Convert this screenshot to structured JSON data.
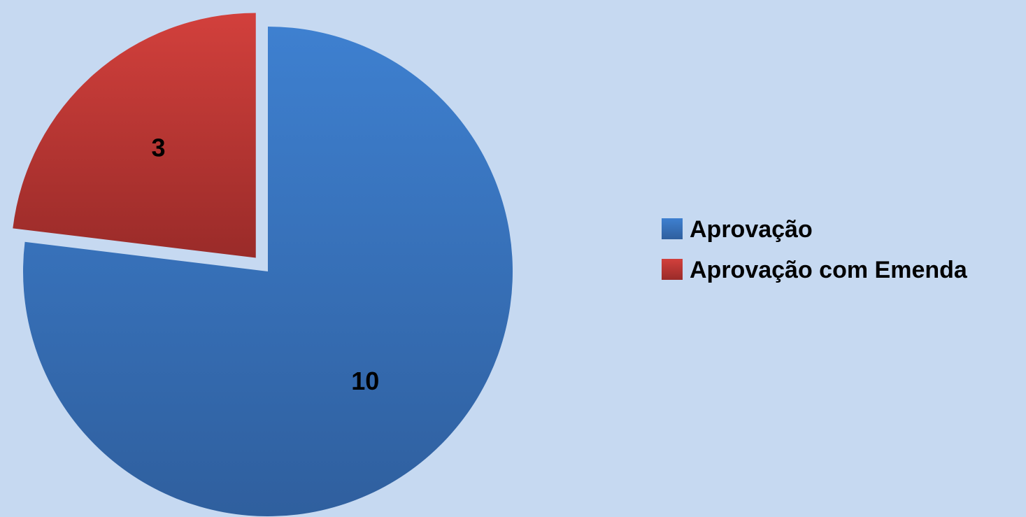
{
  "chart_data": {
    "type": "pie",
    "title": "",
    "categories": [
      "Aprovação",
      "Aprovação com Emenda"
    ],
    "values": [
      10,
      3
    ],
    "colors": [
      "#3b78c4",
      "#c43e3b"
    ],
    "exploded_slice": "Aprovação com Emenda",
    "data_labels": true,
    "legend_position": "right"
  }
}
